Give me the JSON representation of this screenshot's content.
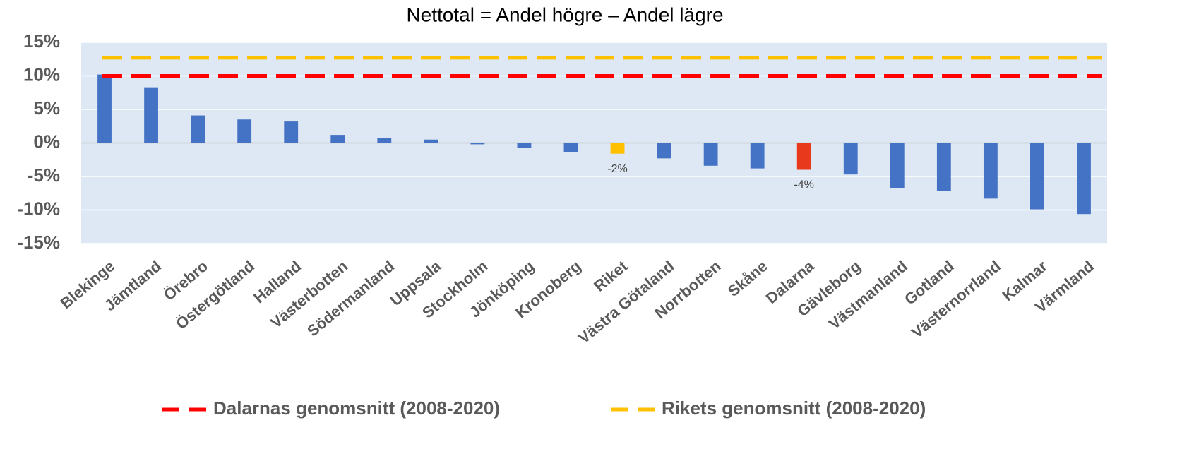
{
  "chart_data": {
    "type": "bar",
    "title": "Nettotal = Andel högre – Andel lägre",
    "categories": [
      "Blekinge",
      "Jämtland",
      "Örebro",
      "Östergötland",
      "Halland",
      "Västerbotten",
      "Södermanland",
      "Uppsala",
      "Stockholm",
      "Jönköping",
      "Kronoberg",
      "Riket",
      "Västra Götaland",
      "Norrbotten",
      "Skåne",
      "Dalarna",
      "Gävleborg",
      "Västmanland",
      "Gotland",
      "Västernorrland",
      "Kalmar",
      "Värmland"
    ],
    "values": [
      10.2,
      8.3,
      4.1,
      3.5,
      3.2,
      1.2,
      0.7,
      0.5,
      -0.2,
      -0.7,
      -1.4,
      -1.6,
      -2.3,
      -3.4,
      -3.8,
      -4.0,
      -4.7,
      -6.7,
      -7.2,
      -8.3,
      -9.9,
      -10.6
    ],
    "value_labels": [
      null,
      null,
      null,
      null,
      null,
      null,
      null,
      null,
      null,
      null,
      null,
      "-2%",
      null,
      null,
      null,
      "-4%",
      null,
      null,
      null,
      null,
      null,
      null
    ],
    "colors": [
      "#4472c4",
      "#4472c4",
      "#4472c4",
      "#4472c4",
      "#4472c4",
      "#4472c4",
      "#4472c4",
      "#4472c4",
      "#4472c4",
      "#4472c4",
      "#4472c4",
      "#ffc000",
      "#4472c4",
      "#4472c4",
      "#4472c4",
      "#e8391d",
      "#4472c4",
      "#4472c4",
      "#4472c4",
      "#4472c4",
      "#4472c4",
      "#4472c4"
    ],
    "reference_lines": [
      {
        "name": "Dalarnas genomsnitt (2008-2020)",
        "color": "#ff0000",
        "value": 10.0
      },
      {
        "name": "Rikets genomsnitt (2008-2020)",
        "color": "#ffc000",
        "value": 12.7
      }
    ],
    "ylim": [
      -15,
      15
    ],
    "yticks": [
      {
        "value": -15,
        "label": "-15%"
      },
      {
        "value": -10,
        "label": "-10%"
      },
      {
        "value": -5,
        "label": "-5%"
      },
      {
        "value": 0,
        "label": "0%"
      },
      {
        "value": 5,
        "label": "5%"
      },
      {
        "value": 10,
        "label": "10%"
      },
      {
        "value": 15,
        "label": "15%"
      }
    ],
    "grid": true
  }
}
